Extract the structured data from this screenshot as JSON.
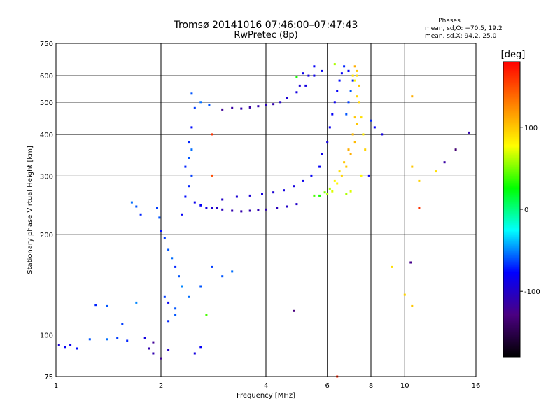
{
  "chart_data": {
    "type": "scatter",
    "title": "Tromsø 20141016 07:46:00–07:47:43",
    "subtitle": "RwPretec (8p)",
    "xlabel": "Frequency [MHz]",
    "ylabel": "Stationary phase Virtual Height [km]",
    "x_scale": "log",
    "y_scale": "log",
    "xlim": [
      1,
      16
    ],
    "ylim": [
      75,
      750
    ],
    "x_ticks": [
      1,
      2,
      4,
      6,
      8,
      10,
      16
    ],
    "x_tick_labels": [
      "1",
      "2",
      "4",
      "6",
      "8",
      "10",
      "16"
    ],
    "y_ticks": [
      75,
      100,
      200,
      300,
      400,
      500,
      600,
      750
    ],
    "y_tick_labels": [
      "75",
      "100",
      "200",
      "300",
      "400",
      "500",
      "600",
      "750"
    ],
    "grid": true,
    "colorbar": {
      "label": "[deg]",
      "range": [
        -180,
        180
      ],
      "ticks": [
        -100,
        0,
        100
      ],
      "tick_labels": [
        "-100",
        "0",
        "100"
      ],
      "colors": [
        "#000000",
        "#4b0082",
        "#0000ff",
        "#00ffff",
        "#00ff00",
        "#ffff00",
        "#ff8000",
        "#ff0000"
      ]
    },
    "info": {
      "heading": "Phases",
      "line1": "mean, sd,O: −70.5, 19.2",
      "line2": "mean, sd,X:  94.2, 25.0"
    },
    "points": [
      [
        1.02,
        93,
        -95
      ],
      [
        1.06,
        92,
        -80
      ],
      [
        1.1,
        93,
        -85
      ],
      [
        1.15,
        91,
        -75
      ],
      [
        1.25,
        97,
        -60
      ],
      [
        1.4,
        97,
        -55
      ],
      [
        1.5,
        98,
        -65
      ],
      [
        1.6,
        96,
        -70
      ],
      [
        1.8,
        98,
        -90
      ],
      [
        1.85,
        91,
        -110
      ],
      [
        1.3,
        123,
        -70
      ],
      [
        1.4,
        122,
        -60
      ],
      [
        1.55,
        108,
        -65
      ],
      [
        1.7,
        125,
        -50
      ],
      [
        1.65,
        250,
        -55
      ],
      [
        1.7,
        243,
        -60
      ],
      [
        1.75,
        230,
        -70
      ],
      [
        1.95,
        240,
        -65
      ],
      [
        1.98,
        225,
        -60
      ],
      [
        2.0,
        205,
        -75
      ],
      [
        2.05,
        195,
        -65
      ],
      [
        2.1,
        180,
        -60
      ],
      [
        2.15,
        170,
        -55
      ],
      [
        2.2,
        160,
        -70
      ],
      [
        2.25,
        150,
        -60
      ],
      [
        2.3,
        140,
        -50
      ],
      [
        2.05,
        130,
        -65
      ],
      [
        2.1,
        125,
        -80
      ],
      [
        2.2,
        120,
        -60
      ],
      [
        2.3,
        230,
        -80
      ],
      [
        2.35,
        260,
        -75
      ],
      [
        2.4,
        280,
        -70
      ],
      [
        2.45,
        300,
        -65
      ],
      [
        2.35,
        320,
        -70
      ],
      [
        2.4,
        340,
        -60
      ],
      [
        2.45,
        360,
        -55
      ],
      [
        2.4,
        380,
        -70
      ],
      [
        2.45,
        420,
        -75
      ],
      [
        2.5,
        480,
        -65
      ],
      [
        2.45,
        530,
        -60
      ],
      [
        2.6,
        500,
        -55
      ],
      [
        2.75,
        490,
        -60
      ],
      [
        2.5,
        250,
        -85
      ],
      [
        2.6,
        245,
        -80
      ],
      [
        2.7,
        240,
        -90
      ],
      [
        2.8,
        240,
        -95
      ],
      [
        2.9,
        240,
        -100
      ],
      [
        3.0,
        238,
        -105
      ],
      [
        3.2,
        236,
        -110
      ],
      [
        3.4,
        235,
        -112
      ],
      [
        3.6,
        236,
        -110
      ],
      [
        3.8,
        237,
        -108
      ],
      [
        4.0,
        238,
        -110
      ],
      [
        4.3,
        240,
        -105
      ],
      [
        4.6,
        243,
        -100
      ],
      [
        4.9,
        247,
        -100
      ],
      [
        3.0,
        255,
        -100
      ],
      [
        3.3,
        260,
        -95
      ],
      [
        3.6,
        262,
        -95
      ],
      [
        3.9,
        265,
        -90
      ],
      [
        4.2,
        268,
        -95
      ],
      [
        4.5,
        272,
        -90
      ],
      [
        4.8,
        280,
        -90
      ],
      [
        5.1,
        290,
        -85
      ],
      [
        5.4,
        300,
        -80
      ],
      [
        5.7,
        320,
        -80
      ],
      [
        5.5,
        262,
        40
      ],
      [
        5.7,
        262,
        30
      ],
      [
        5.9,
        268,
        50
      ],
      [
        6.1,
        275,
        60
      ],
      [
        6.3,
        290,
        80
      ],
      [
        6.5,
        310,
        90
      ],
      [
        6.7,
        330,
        100
      ],
      [
        6.9,
        360,
        110
      ],
      [
        7.1,
        400,
        105
      ],
      [
        7.2,
        450,
        100
      ],
      [
        7.3,
        520,
        95
      ],
      [
        7.3,
        600,
        90
      ],
      [
        7.2,
        640,
        110
      ],
      [
        6.0,
        265,
        60
      ],
      [
        6.2,
        270,
        70
      ],
      [
        6.4,
        285,
        80
      ],
      [
        6.6,
        300,
        95
      ],
      [
        6.8,
        320,
        100
      ],
      [
        7.0,
        350,
        110
      ],
      [
        7.2,
        380,
        105
      ],
      [
        7.3,
        430,
        100
      ],
      [
        7.4,
        500,
        95
      ],
      [
        7.4,
        560,
        100
      ],
      [
        5.8,
        350,
        -85
      ],
      [
        6.0,
        380,
        -90
      ],
      [
        6.1,
        420,
        -85
      ],
      [
        6.2,
        460,
        -80
      ],
      [
        6.3,
        500,
        -85
      ],
      [
        6.4,
        540,
        -80
      ],
      [
        6.5,
        580,
        -75
      ],
      [
        6.6,
        610,
        -80
      ],
      [
        6.7,
        640,
        -70
      ],
      [
        6.8,
        460,
        -60
      ],
      [
        6.9,
        500,
        -65
      ],
      [
        7.0,
        540,
        -60
      ],
      [
        7.1,
        580,
        -70
      ],
      [
        6.9,
        620,
        -75
      ],
      [
        3.0,
        475,
        -120
      ],
      [
        3.2,
        480,
        -115
      ],
      [
        3.4,
        478,
        -110
      ],
      [
        3.6,
        482,
        -115
      ],
      [
        3.8,
        486,
        -110
      ],
      [
        4.0,
        490,
        -105
      ],
      [
        4.2,
        493,
        -110
      ],
      [
        4.4,
        500,
        -100
      ],
      [
        4.6,
        515,
        -95
      ],
      [
        4.9,
        535,
        -90
      ],
      [
        5.2,
        560,
        -90
      ],
      [
        5.5,
        600,
        -85
      ],
      [
        5.8,
        620,
        -80
      ],
      [
        2.1,
        110,
        -70
      ],
      [
        2.2,
        115,
        -60
      ],
      [
        2.4,
        130,
        -55
      ],
      [
        2.6,
        140,
        -60
      ],
      [
        2.8,
        160,
        -65
      ],
      [
        3.0,
        150,
        -60
      ],
      [
        3.2,
        155,
        -55
      ],
      [
        8.0,
        440,
        -70
      ],
      [
        8.2,
        420,
        -80
      ],
      [
        8.6,
        400,
        -90
      ],
      [
        7.9,
        300,
        -85
      ],
      [
        10.5,
        520,
        110
      ],
      [
        10.5,
        320,
        100
      ],
      [
        11.0,
        290,
        95
      ],
      [
        12.3,
        310,
        90
      ],
      [
        13.0,
        330,
        -115
      ],
      [
        14.0,
        360,
        -135
      ],
      [
        15.3,
        405,
        -110
      ],
      [
        11.0,
        240,
        160
      ],
      [
        10.4,
        165,
        -125
      ],
      [
        10.0,
        132,
        95
      ],
      [
        10.5,
        122,
        100
      ],
      [
        9.2,
        160,
        90
      ],
      [
        4.8,
        118,
        -130
      ],
      [
        6.4,
        75,
        165
      ],
      [
        2.8,
        400,
        160
      ],
      [
        2.8,
        300,
        150
      ],
      [
        2.7,
        115,
        40
      ],
      [
        2.0,
        85,
        -120
      ],
      [
        1.9,
        88,
        -110
      ],
      [
        2.1,
        90,
        -100
      ],
      [
        2.5,
        88,
        -90
      ],
      [
        2.6,
        92,
        -80
      ],
      [
        1.9,
        95,
        -120
      ],
      [
        7.1,
        600,
        90
      ],
      [
        7.2,
        580,
        80
      ],
      [
        7.3,
        620,
        100
      ],
      [
        6.9,
        620,
        -80
      ],
      [
        7.5,
        450,
        90
      ],
      [
        7.6,
        400,
        85
      ],
      [
        7.7,
        360,
        95
      ],
      [
        7.5,
        300,
        80
      ],
      [
        7.0,
        270,
        70
      ],
      [
        6.8,
        265,
        60
      ],
      [
        5.3,
        600,
        -90
      ],
      [
        5.1,
        610,
        -85
      ],
      [
        4.9,
        595,
        30
      ],
      [
        5.0,
        560,
        -95
      ],
      [
        5.5,
        640,
        -80
      ],
      [
        6.3,
        650,
        60
      ]
    ]
  }
}
